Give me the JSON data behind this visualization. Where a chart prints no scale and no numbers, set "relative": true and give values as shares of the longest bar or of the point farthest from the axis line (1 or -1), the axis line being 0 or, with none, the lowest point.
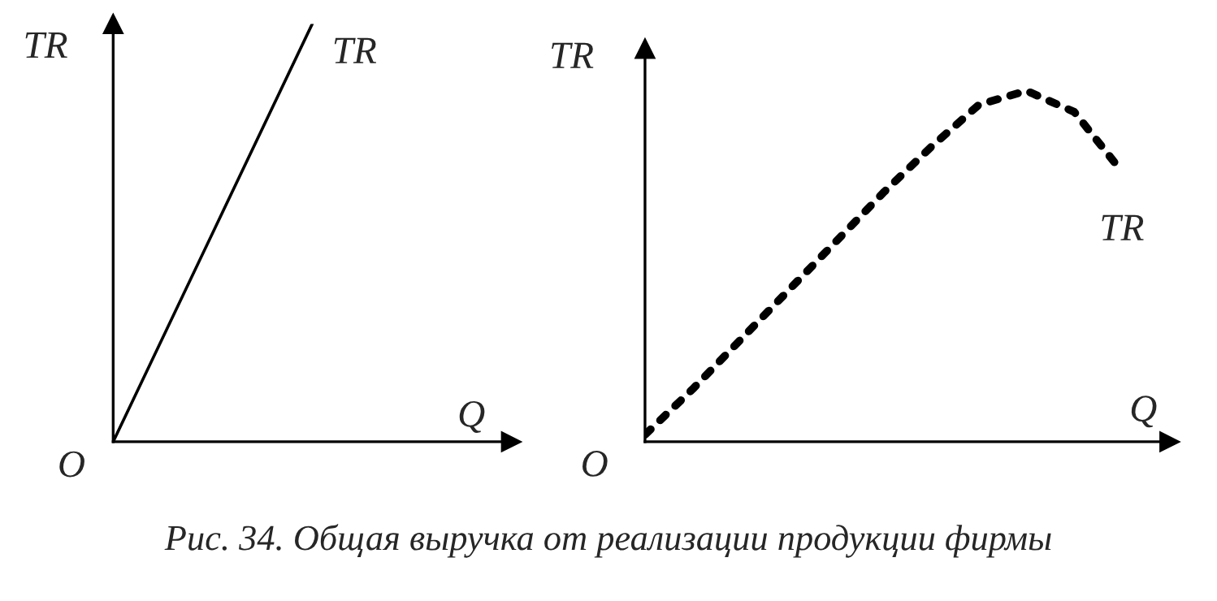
{
  "chart_data": [
    {
      "type": "line",
      "relative": true,
      "xlabel": "Q",
      "ylabel": "TR",
      "annotations": [
        "O"
      ],
      "categories": [
        null,
        null,
        null
      ],
      "line_style": "solid",
      "series": [
        {
          "name": "TR",
          "color": "#000000",
          "values": [
            0,
            1,
            null
          ]
        }
      ]
    },
    {
      "type": "line",
      "relative": true,
      "xlabel": "Q",
      "ylabel": "TR",
      "annotations": [
        "O",
        "Рис. 34. Общая выручка от реализации продукции фирмы"
      ],
      "categories": [
        null,
        null,
        null,
        null,
        null,
        null,
        null,
        null,
        null,
        null,
        null,
        null
      ],
      "line_style": "dotted",
      "series": [
        {
          "name": "TR",
          "color": "#000000",
          "values": [
            0.02,
            0.15,
            0.29,
            0.43,
            0.57,
            0.71,
            0.84,
            0.96,
            1,
            0.94,
            0.77,
            null
          ]
        }
      ]
    }
  ]
}
